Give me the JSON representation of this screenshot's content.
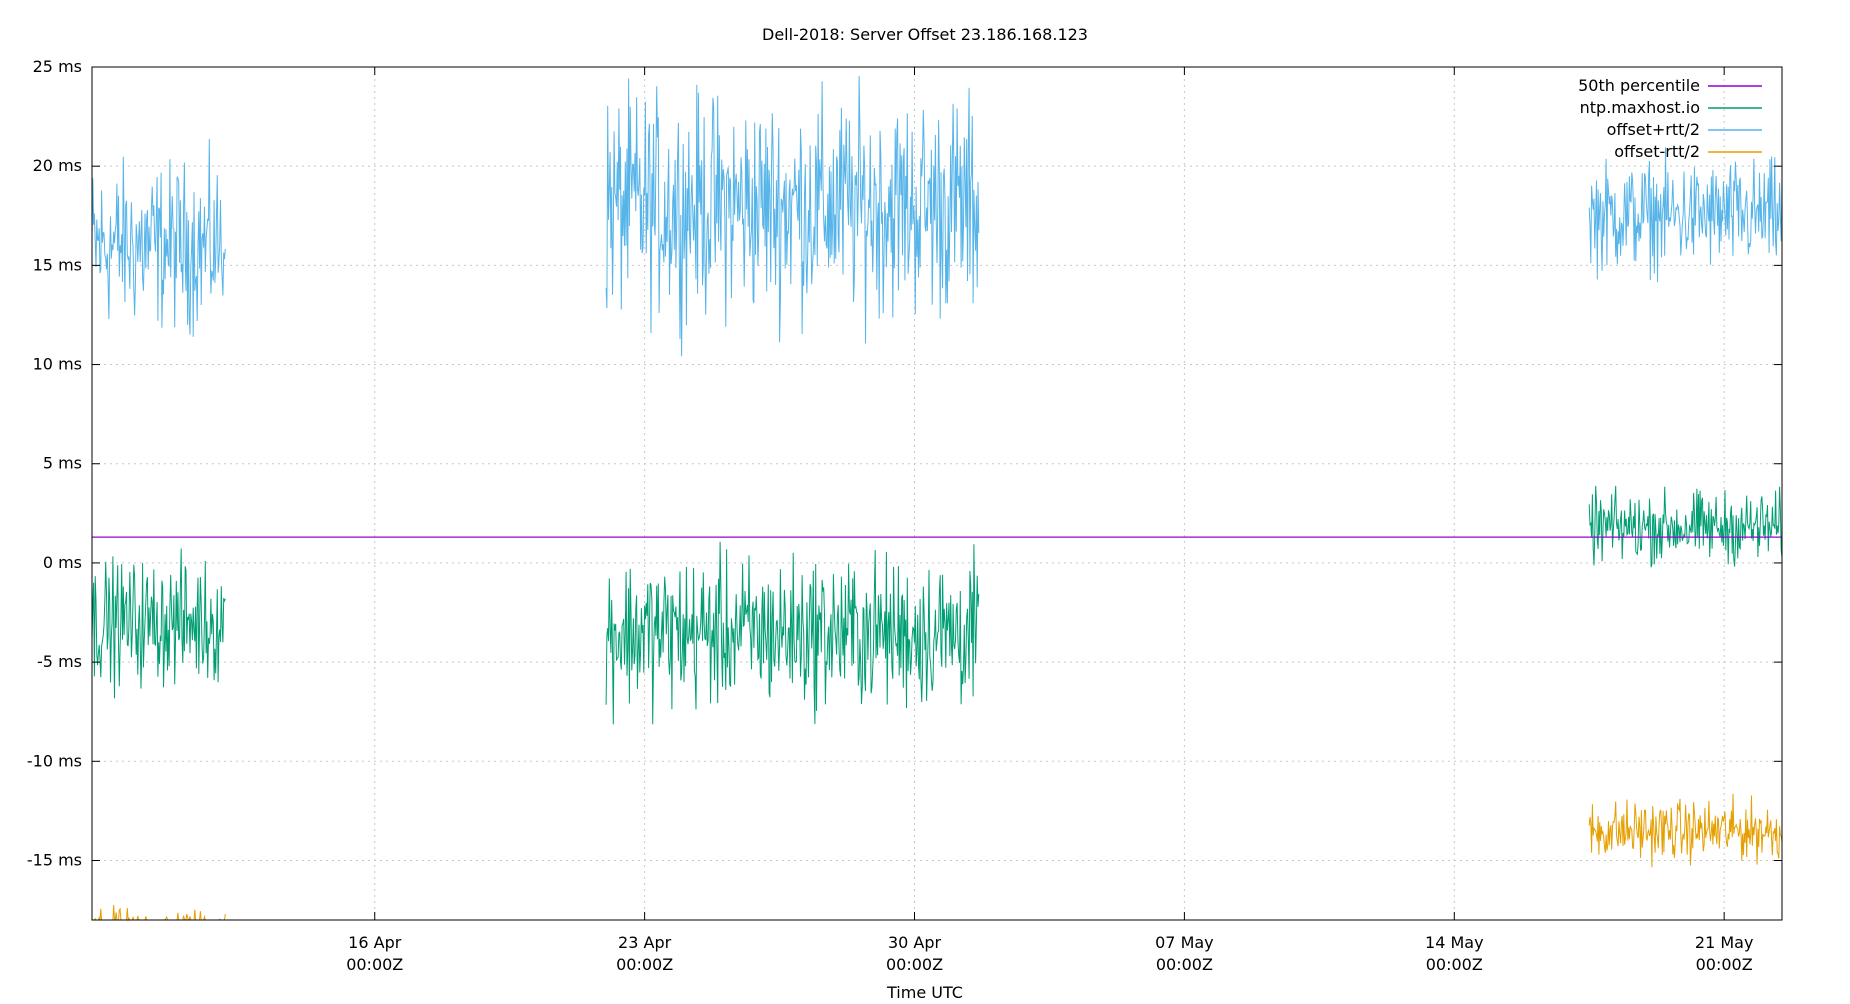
{
  "chart_data": {
    "type": "line",
    "title": "Dell-2018: Server Offset 23.186.168.123",
    "xlabel": "Time UTC",
    "ylabel": "",
    "ylim": [
      -18,
      25
    ],
    "xlim": [
      "2018-04-08T16:00Z",
      "2018-05-22T12:00Z"
    ],
    "grid": true,
    "legend_position": "top-right",
    "y_ticks": [
      {
        "value": 25,
        "label": "25 ms"
      },
      {
        "value": 20,
        "label": "20 ms"
      },
      {
        "value": 15,
        "label": "15 ms"
      },
      {
        "value": 10,
        "label": "10 ms"
      },
      {
        "value": 5,
        "label": "5 ms"
      },
      {
        "value": 0,
        "label": "0 ms"
      },
      {
        "value": -5,
        "label": "-5 ms"
      },
      {
        "value": -10,
        "label": "-10 ms"
      },
      {
        "value": -15,
        "label": "-15 ms"
      }
    ],
    "x_ticks": [
      {
        "value": "2018-04-16T00:00Z",
        "line1": "16 Apr",
        "line2": "00:00Z"
      },
      {
        "value": "2018-04-23T00:00Z",
        "line1": "23 Apr",
        "line2": "00:00Z"
      },
      {
        "value": "2018-04-30T00:00Z",
        "line1": "30 Apr",
        "line2": "00:00Z"
      },
      {
        "value": "2018-05-07T00:00Z",
        "line1": "07 May",
        "line2": "00:00Z"
      },
      {
        "value": "2018-05-14T00:00Z",
        "line1": "14 May",
        "line2": "00:00Z"
      },
      {
        "value": "2018-05-21T00:00Z",
        "line1": "21 May",
        "line2": "00:00Z"
      }
    ],
    "series": [
      {
        "name": "50th percentile",
        "color": "#9400d3",
        "kind": "constant",
        "value": 1.3
      },
      {
        "name": "ntp.maxhost.io",
        "color": "#009e73",
        "kind": "noisy",
        "segments": [
          {
            "start": "2018-04-08T16:00Z",
            "end": "2018-04-12T03:00Z",
            "mean": -3.0,
            "spread": 4.5
          },
          {
            "start": "2018-04-22T00:00Z",
            "end": "2018-05-01T16:00Z",
            "mean": -3.5,
            "spread": 5.5
          },
          {
            "start": "2018-05-17T12:00Z",
            "end": "2018-05-22T12:00Z",
            "mean": 1.8,
            "spread": 2.6
          }
        ]
      },
      {
        "name": "offset+rtt/2",
        "color": "#56b4e9",
        "kind": "noisy",
        "segments": [
          {
            "start": "2018-04-08T16:00Z",
            "end": "2018-04-12T03:00Z",
            "mean": 16.0,
            "spread": 6.0
          },
          {
            "start": "2018-04-22T00:00Z",
            "end": "2018-05-01T16:00Z",
            "mean": 18.0,
            "spread": 8.0
          },
          {
            "start": "2018-05-17T12:00Z",
            "end": "2018-05-22T12:00Z",
            "mean": 17.5,
            "spread": 4.0
          }
        ]
      },
      {
        "name": "offset-rtt/2",
        "color": "#e69f00",
        "kind": "noisy",
        "segments": [
          {
            "start": "2018-04-08T16:00Z",
            "end": "2018-04-12T03:00Z",
            "mean": -18.5,
            "spread": 1.5
          },
          {
            "start": "2018-05-17T12:00Z",
            "end": "2018-05-22T12:00Z",
            "mean": -13.5,
            "spread": 2.2
          }
        ]
      }
    ]
  }
}
